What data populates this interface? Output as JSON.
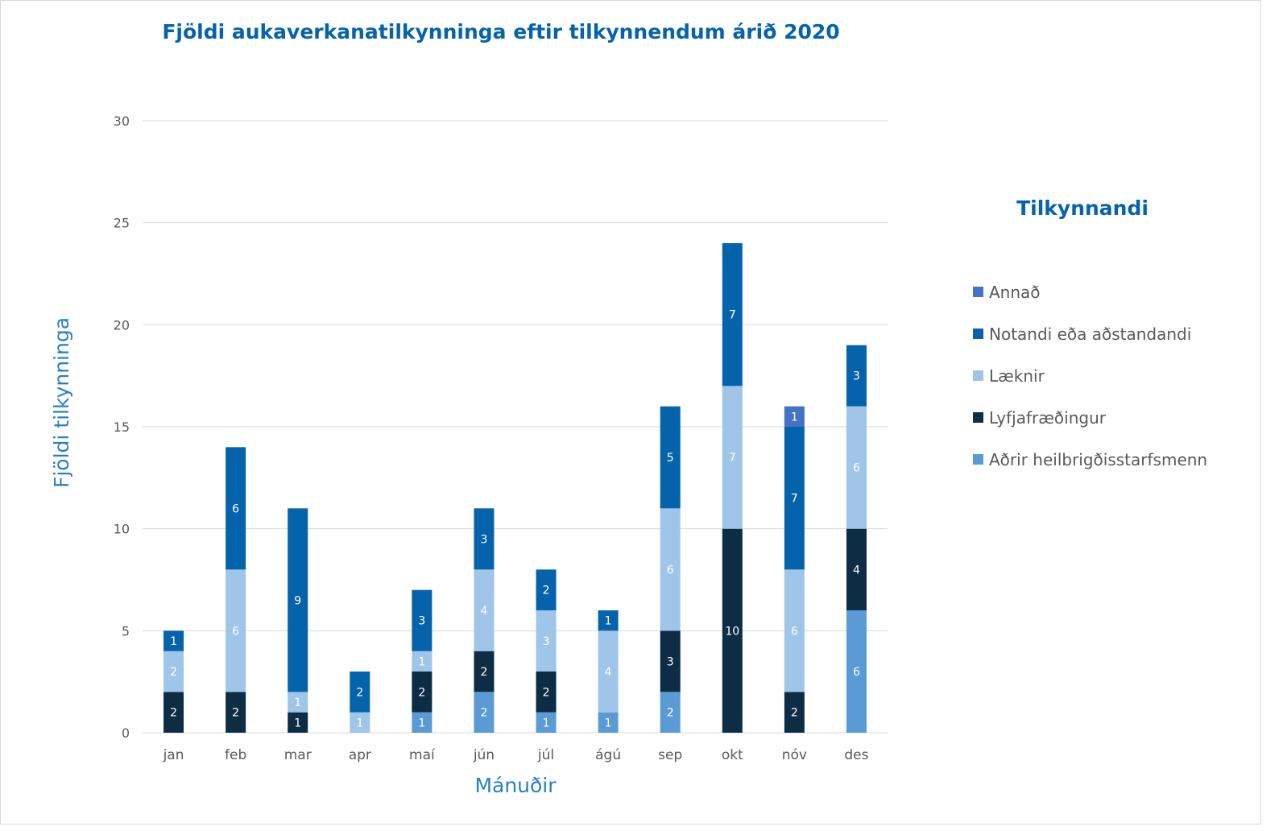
{
  "chart_data": {
    "type": "bar",
    "stacked": true,
    "title": "Fjöldi aukaverkanatilkynninga eftir tilkynnendum árið 2020",
    "xlabel": "Mánuðir",
    "ylabel": "Fjöldi tilkynninga",
    "ylim": [
      0,
      30
    ],
    "yticks": [
      0,
      5,
      10,
      15,
      20,
      25,
      30
    ],
    "grid": true,
    "legend_title": "Tilkynnandi",
    "legend_position": "right",
    "categories": [
      "jan",
      "feb",
      "mar",
      "apr",
      "maí",
      "jún",
      "júl",
      "ágú",
      "sep",
      "okt",
      "nóv",
      "des"
    ],
    "series": [
      {
        "name": "Aðrir heilbrigðisstarfsmenn",
        "color": "#5b9bd5",
        "values": [
          0,
          0,
          0,
          0,
          1,
          2,
          1,
          1,
          2,
          0,
          0,
          6
        ]
      },
      {
        "name": "Lyfjafræðingur",
        "color": "#0d2d45",
        "values": [
          2,
          2,
          1,
          0,
          2,
          2,
          2,
          0,
          3,
          10,
          2,
          4
        ]
      },
      {
        "name": "Læknir",
        "color": "#9fc5e8",
        "values": [
          2,
          6,
          1,
          1,
          1,
          4,
          3,
          4,
          6,
          7,
          6,
          6
        ]
      },
      {
        "name": "Notandi eða aðstandandi",
        "color": "#0563ab",
        "values": [
          1,
          6,
          9,
          2,
          3,
          3,
          2,
          1,
          5,
          7,
          7,
          3
        ]
      },
      {
        "name": "Annað",
        "color": "#4472c4",
        "values": [
          0,
          0,
          0,
          0,
          0,
          0,
          0,
          0,
          0,
          0,
          1,
          0
        ]
      }
    ],
    "legend_order": [
      "Annað",
      "Notandi eða aðstandandi",
      "Læknir",
      "Lyfjafræðingur",
      "Aðrir heilbrigðisstarfsmenn"
    ]
  }
}
